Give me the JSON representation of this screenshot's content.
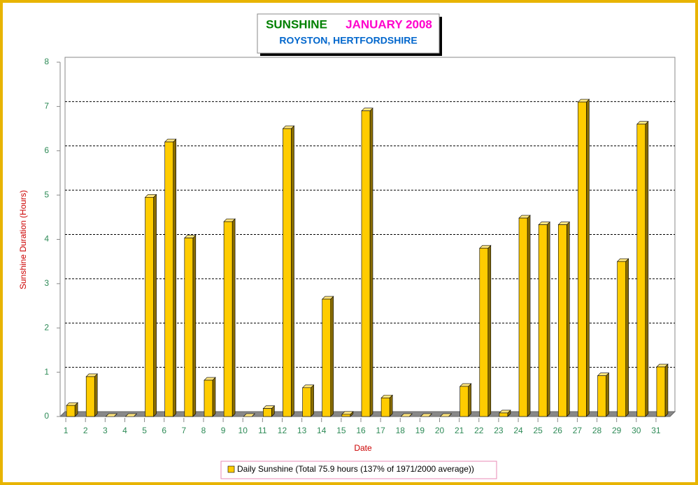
{
  "chart_data": {
    "type": "bar3d",
    "title": "SUNSHINE",
    "title_period": "JANUARY 2008",
    "subtitle": "ROYSTON, HERTFORDSHIRE",
    "x_label": "Date",
    "y_label": "Sunshine Duration (Hours)",
    "categories": [
      "1",
      "2",
      "3",
      "4",
      "5",
      "6",
      "7",
      "8",
      "9",
      "10",
      "11",
      "12",
      "13",
      "14",
      "15",
      "16",
      "17",
      "18",
      "19",
      "20",
      "21",
      "22",
      "23",
      "24",
      "25",
      "26",
      "27",
      "28",
      "29",
      "30",
      "31"
    ],
    "series": [
      {
        "name": "Daily Sunshine (Total 75.9 hours (137% of 1971/2000 average))",
        "color": "#ffcc00",
        "values": [
          0.25,
          0.9,
          0,
          0,
          4.95,
          6.2,
          4.03,
          0.82,
          4.4,
          0,
          0.18,
          6.5,
          0.65,
          2.65,
          0.05,
          6.9,
          0.42,
          0,
          0,
          0,
          0.68,
          3.8,
          0.08,
          4.48,
          4.33,
          4.33,
          7.1,
          0.92,
          3.5,
          6.6,
          1.12
        ]
      }
    ],
    "ylim": [
      0,
      8
    ],
    "yticks": [
      0,
      1,
      2,
      3,
      4,
      5,
      6,
      7,
      8
    ],
    "grid": true
  }
}
